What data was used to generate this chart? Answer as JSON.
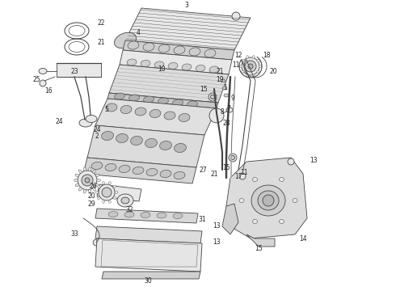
{
  "background_color": "#ffffff",
  "line_color": "#444444",
  "label_color": "#222222",
  "figsize": [
    4.9,
    3.6
  ],
  "dpi": 100,
  "label_fontsize": 5.5,
  "lw": 0.6
}
